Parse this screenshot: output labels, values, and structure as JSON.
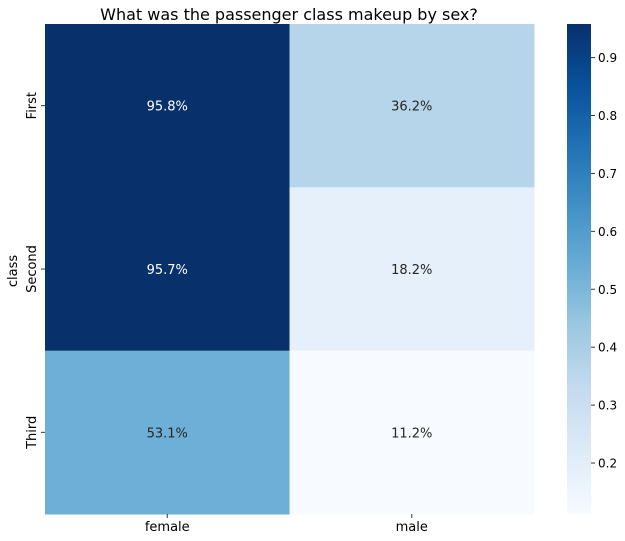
{
  "chart_data": {
    "type": "heatmap",
    "title": "What was the passenger class makeup by sex?",
    "xlabel": "",
    "ylabel": "class",
    "x_categories": [
      "female",
      "male"
    ],
    "y_categories": [
      "First",
      "Second",
      "Third"
    ],
    "values": [
      [
        0.958,
        0.362
      ],
      [
        0.957,
        0.182
      ],
      [
        0.531,
        0.112
      ]
    ],
    "annotations": [
      [
        "95.8%",
        "36.2%"
      ],
      [
        "95.7%",
        "18.2%"
      ],
      [
        "53.1%",
        "11.2%"
      ]
    ],
    "colormap": "Blues",
    "color_range": [
      0.112,
      0.958
    ],
    "colorbar_ticks": [
      "0.2",
      "0.3",
      "0.4",
      "0.5",
      "0.6",
      "0.7",
      "0.8",
      "0.9"
    ],
    "colorbar_tick_values": [
      0.2,
      0.3,
      0.4,
      0.5,
      0.6,
      0.7,
      0.8,
      0.9
    ],
    "grid": false,
    "colorbar_position": "right"
  }
}
